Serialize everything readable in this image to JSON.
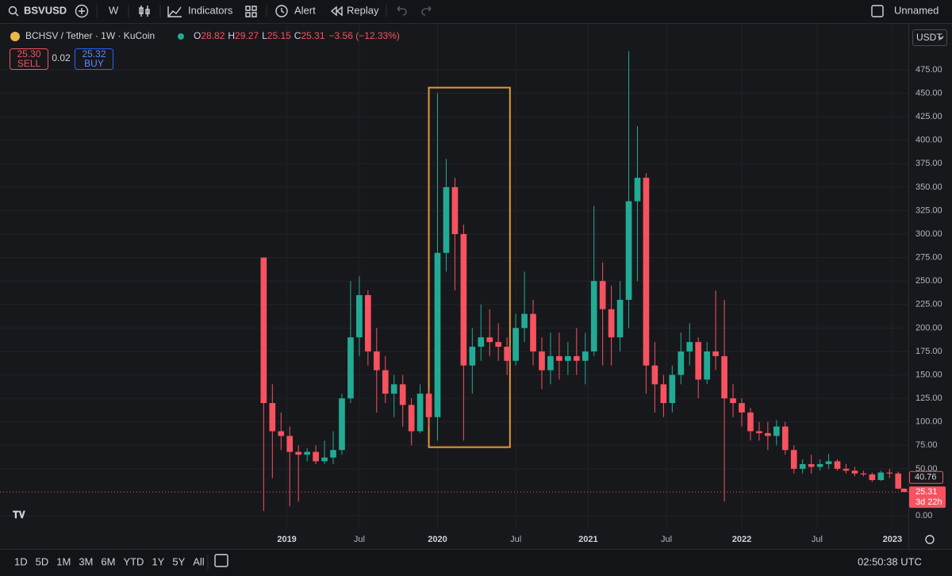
{
  "toolbar": {
    "symbol": "BSVUSD",
    "interval": "W",
    "indicators": "Indicators",
    "alert": "Alert",
    "replay": "Replay",
    "layout_name": "Unnamed"
  },
  "legend": {
    "title": "BCHSV / Tether · 1W · KuCoin",
    "open_label": "O",
    "high_label": "H",
    "low_label": "L",
    "close_label": "C",
    "change": "−3.56 (−12.33%)",
    "sell_price": "25.30",
    "sell": "SELL",
    "spread": "0.02",
    "buy_price": "25.32",
    "buy": "BUY"
  },
  "chart_data": {
    "type": "candlestick",
    "currency": "USDT",
    "up_color": "#22ab94",
    "down_color": "#f7525f",
    "x": [
      0,
      3,
      6,
      9,
      12,
      15,
      18,
      21,
      24,
      27,
      30,
      33,
      36,
      39,
      42,
      45,
      48,
      51,
      54,
      57,
      60,
      63,
      66,
      69,
      72,
      75,
      78,
      81,
      84,
      87,
      90,
      93,
      96,
      99,
      102,
      105,
      108,
      111,
      114,
      117,
      120,
      123,
      126,
      129,
      132,
      135,
      138,
      141,
      144,
      147,
      150,
      153,
      156,
      159,
      162,
      165,
      168,
      171,
      174,
      177,
      180,
      183,
      186,
      189,
      192,
      195,
      198,
      201,
      204,
      207,
      210,
      213,
      216,
      219,
      221
    ],
    "open": [
      275,
      120,
      90,
      85,
      68,
      65,
      68,
      58,
      62,
      70,
      125,
      190,
      235,
      175,
      155,
      130,
      140,
      118,
      90,
      130,
      105,
      280,
      350,
      300,
      160,
      180,
      190,
      185,
      180,
      165,
      200,
      215,
      175,
      155,
      170,
      165,
      170,
      165,
      175,
      250,
      220,
      190,
      230,
      335,
      360,
      160,
      140,
      120,
      150,
      175,
      185,
      145,
      175,
      170,
      125,
      120,
      110,
      90,
      88,
      85,
      95,
      70,
      50,
      55,
      52,
      55,
      58,
      50,
      48,
      45,
      44,
      38,
      46,
      45,
      28.82
    ],
    "high": [
      275,
      140,
      110,
      95,
      75,
      72,
      75,
      80,
      90,
      130,
      250,
      255,
      240,
      200,
      170,
      150,
      150,
      125,
      140,
      135,
      450,
      380,
      360,
      310,
      200,
      225,
      220,
      205,
      190,
      215,
      260,
      230,
      190,
      195,
      195,
      185,
      200,
      195,
      330,
      270,
      245,
      250,
      495,
      415,
      365,
      185,
      150,
      160,
      195,
      205,
      190,
      185,
      240,
      230,
      140,
      125,
      115,
      100,
      100,
      102,
      100,
      75,
      60,
      65,
      60,
      66,
      60,
      55,
      52,
      48,
      46,
      48,
      50,
      47,
      29.27
    ],
    "low": [
      5,
      40,
      70,
      10,
      15,
      58,
      55,
      55,
      55,
      65,
      120,
      170,
      160,
      110,
      120,
      105,
      95,
      75,
      88,
      95,
      80,
      260,
      240,
      80,
      130,
      165,
      170,
      165,
      150,
      160,
      185,
      160,
      135,
      140,
      145,
      150,
      150,
      140,
      170,
      160,
      160,
      175,
      200,
      250,
      130,
      110,
      105,
      110,
      140,
      160,
      125,
      140,
      155,
      15,
      105,
      95,
      80,
      80,
      70,
      75,
      65,
      45,
      45,
      45,
      48,
      50,
      48,
      45,
      42,
      42,
      36,
      37,
      40,
      28,
      25.15
    ],
    "close": [
      120,
      90,
      85,
      68,
      65,
      68,
      58,
      62,
      70,
      125,
      190,
      235,
      175,
      155,
      130,
      140,
      118,
      90,
      130,
      105,
      280,
      350,
      300,
      160,
      180,
      190,
      185,
      180,
      165,
      200,
      215,
      175,
      155,
      170,
      165,
      170,
      165,
      175,
      250,
      220,
      190,
      230,
      335,
      360,
      160,
      140,
      120,
      150,
      175,
      185,
      145,
      175,
      170,
      125,
      120,
      110,
      90,
      88,
      85,
      95,
      70,
      50,
      55,
      52,
      55,
      58,
      50,
      48,
      45,
      44,
      38,
      46,
      45,
      28.87,
      25.31
    ],
    "xlim": [
      -91,
      222.5
    ],
    "ylim": [
      -13.5,
      524
    ],
    "xticks": [
      {
        "value": 8,
        "label": "2019"
      },
      {
        "value": 33,
        "label": "Jul"
      },
      {
        "value": 60,
        "label": "2020"
      },
      {
        "value": 87,
        "label": "Jul"
      },
      {
        "value": 112,
        "label": "2021"
      },
      {
        "value": 139,
        "label": "Jul"
      },
      {
        "value": 165,
        "label": "2022"
      },
      {
        "value": 191,
        "label": "Jul"
      },
      {
        "value": 217,
        "label": "2023"
      }
    ],
    "yticks": [
      {
        "value": 0,
        "label": "0.00"
      },
      {
        "value": 50,
        "label": "50.00"
      },
      {
        "value": 75,
        "label": "75.00"
      },
      {
        "value": 100,
        "label": "100.00"
      },
      {
        "value": 125,
        "label": "125.00"
      },
      {
        "value": 150,
        "label": "150.00"
      },
      {
        "value": 175,
        "label": "175.00"
      },
      {
        "value": 200,
        "label": "200.00"
      },
      {
        "value": 225,
        "label": "225.00"
      },
      {
        "value": 250,
        "label": "250.00"
      },
      {
        "value": 275,
        "label": "275.00"
      },
      {
        "value": 300,
        "label": "300.00"
      },
      {
        "value": 325,
        "label": "325.00"
      },
      {
        "value": 350,
        "label": "350.00"
      },
      {
        "value": 375,
        "label": "375.00"
      },
      {
        "value": 400,
        "label": "400.00"
      },
      {
        "value": 425,
        "label": "425.00"
      },
      {
        "value": 450,
        "label": "450.00"
      },
      {
        "value": 475,
        "label": "475.00"
      }
    ],
    "grid": true,
    "highlight": {
      "x": [
        57,
        85
      ],
      "y": [
        73,
        456
      ],
      "color": "#e39a3b"
    },
    "ref_price": 40.76,
    "countdown": "3d 22h"
  },
  "bottom_bar": {
    "ranges": [
      "1D",
      "5D",
      "1M",
      "3M",
      "6M",
      "YTD",
      "1Y",
      "5Y",
      "All"
    ],
    "clock": "02:50:38 UTC"
  }
}
